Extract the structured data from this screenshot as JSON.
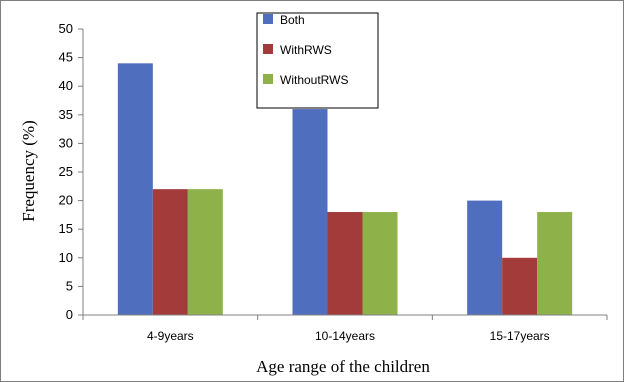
{
  "chart_data": {
    "type": "bar",
    "title": "",
    "xlabel": "Age range of the children",
    "ylabel": "Frequency (%)",
    "ylim": [
      0,
      50
    ],
    "yticks": [
      0,
      5,
      10,
      15,
      20,
      25,
      30,
      35,
      40,
      45,
      50
    ],
    "grid": false,
    "legend_position": "top-center",
    "categories": [
      "4-9years",
      "10-14years",
      "15-17years"
    ],
    "series": [
      {
        "name": "Both",
        "color": "#4F6FBE",
        "values": [
          44,
          36,
          20
        ]
      },
      {
        "name": "WithRWS",
        "color": "#A33B3B",
        "values": [
          22,
          18,
          10
        ]
      },
      {
        "name": "WithoutRWS",
        "color": "#8FB14A",
        "values": [
          22,
          18,
          18
        ]
      }
    ]
  }
}
